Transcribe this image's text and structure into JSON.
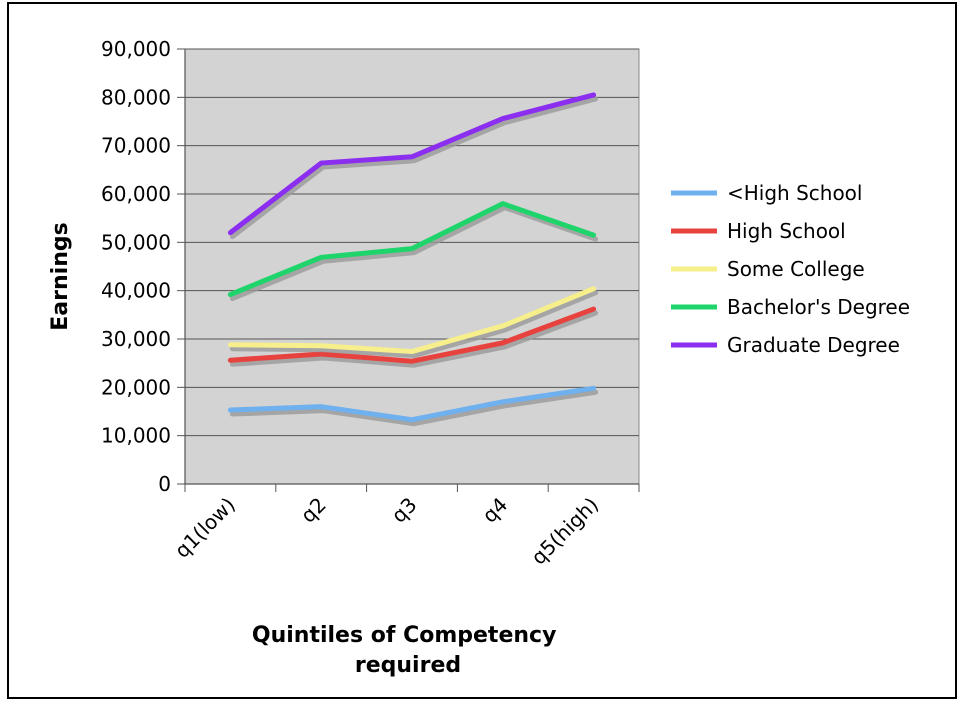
{
  "chart_data": {
    "type": "line",
    "title": "",
    "xlabel": "Quintiles of Competency required",
    "xlabel_lines": [
      "Quintiles of Competency",
      "required"
    ],
    "ylabel": "Earnings",
    "categories": [
      "q1(low)",
      "q2",
      "q3",
      "q4",
      "q5(high)"
    ],
    "ylim": [
      0,
      90000
    ],
    "yticks": [
      0,
      10000,
      20000,
      30000,
      40000,
      50000,
      60000,
      70000,
      80000,
      90000
    ],
    "ytick_labels": [
      "0",
      "10,000",
      "20,000",
      "30,000",
      "40,000",
      "50,000",
      "60,000",
      "70,000",
      "80,000",
      "90,000"
    ],
    "grid": true,
    "plot_background": "#d3d3d3",
    "legend_position": "right",
    "series": [
      {
        "name": "<High School",
        "color": "#6fb0ee",
        "values": [
          15300,
          16000,
          13300,
          17000,
          19800
        ]
      },
      {
        "name": "High School",
        "color": "#e8423f",
        "values": [
          25600,
          26900,
          25400,
          29200,
          36200
        ]
      },
      {
        "name": "Some College",
        "color": "#f6ef8c",
        "values": [
          28800,
          28600,
          27400,
          32700,
          40400
        ]
      },
      {
        "name": "Bachelor's Degree",
        "color": "#1fd46b",
        "values": [
          39200,
          46900,
          48700,
          58000,
          51500
        ]
      },
      {
        "name": "Graduate Degree",
        "color": "#8b2ef0",
        "values": [
          52000,
          66400,
          67700,
          75600,
          80500
        ]
      }
    ]
  }
}
